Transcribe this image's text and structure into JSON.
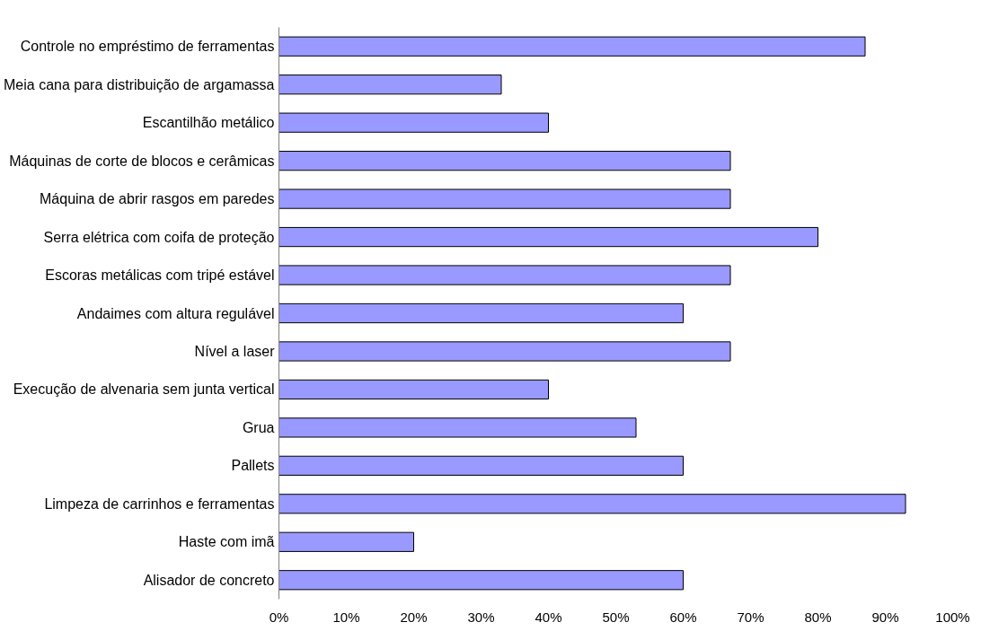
{
  "chart_data": {
    "type": "bar",
    "orientation": "horizontal",
    "categories": [
      "Controle no empréstimo de ferramentas",
      "Meia cana para distribuição de argamassa",
      "Escantilhão metálico",
      "Máquinas de corte de blocos e cerâmicas",
      "Máquina de abrir rasgos em paredes",
      "Serra elétrica com coifa de proteção",
      "Escoras metálicas com tripé estável",
      "Andaimes com altura regulável",
      "Nível a laser",
      "Execução de alvenaria sem junta vertical",
      "Grua",
      "Pallets",
      "Limpeza de carrinhos e ferramentas",
      "Haste com imã",
      "Alisador de concreto"
    ],
    "values": [
      87,
      33,
      40,
      67,
      67,
      80,
      67,
      60,
      67,
      40,
      53,
      60,
      93,
      20,
      60
    ],
    "color": "#9999ff",
    "xlim": [
      0,
      100
    ],
    "xticks": [
      {
        "value": 0,
        "label": "0%"
      },
      {
        "value": 10,
        "label": "10%"
      },
      {
        "value": 20,
        "label": "20%"
      },
      {
        "value": 30,
        "label": "30%"
      },
      {
        "value": 40,
        "label": "40%"
      },
      {
        "value": 50,
        "label": "50%"
      },
      {
        "value": 60,
        "label": "60%"
      },
      {
        "value": 70,
        "label": "70%"
      },
      {
        "value": 80,
        "label": "80%"
      },
      {
        "value": 90,
        "label": "90%"
      },
      {
        "value": 100,
        "label": "100%"
      }
    ],
    "grid": false
  }
}
